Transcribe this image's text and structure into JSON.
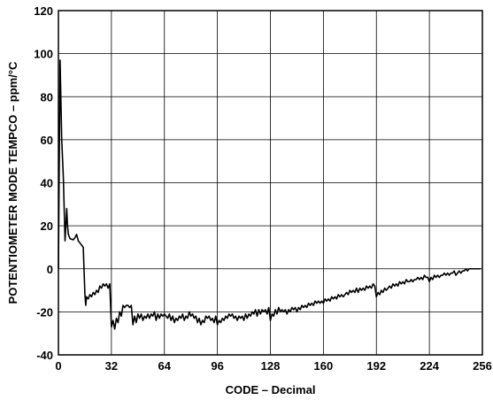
{
  "chart_data": {
    "type": "line",
    "title": "",
    "xlabel": "CODE – Decimal",
    "ylabel": "POTENTIOMETER MODE TEMPCO – ppm/°C",
    "xlim": [
      0,
      256
    ],
    "ylim": [
      -40,
      120
    ],
    "xticks": [
      0,
      32,
      64,
      96,
      128,
      160,
      192,
      224,
      256
    ],
    "yticks": [
      -40,
      -20,
      0,
      20,
      40,
      60,
      80,
      100,
      120
    ],
    "grid": true,
    "line_color": "#000000",
    "series": [
      {
        "name": "",
        "points": [
          [
            0,
            0
          ],
          [
            1,
            97
          ],
          [
            2,
            60
          ],
          [
            3,
            42
          ],
          [
            4,
            13
          ],
          [
            5,
            28
          ],
          [
            5.5,
            20
          ],
          [
            6,
            16
          ],
          [
            7,
            14
          ],
          [
            9,
            13.5
          ],
          [
            10,
            14.5
          ],
          [
            11,
            16
          ],
          [
            12,
            13
          ],
          [
            13,
            12
          ],
          [
            14,
            11
          ],
          [
            15,
            10
          ],
          [
            16,
            -12
          ],
          [
            16.5,
            -17
          ],
          [
            17,
            -13
          ],
          [
            18,
            -14
          ],
          [
            19,
            -12
          ],
          [
            20,
            -13
          ],
          [
            21,
            -11
          ],
          [
            22,
            -12
          ],
          [
            23,
            -10
          ],
          [
            24,
            -11
          ],
          [
            25,
            -8
          ],
          [
            26,
            -9
          ],
          [
            27,
            -7
          ],
          [
            28,
            -8
          ],
          [
            29,
            -7
          ],
          [
            30,
            -9
          ],
          [
            31,
            -7
          ],
          [
            32,
            -27
          ],
          [
            33,
            -24
          ],
          [
            34,
            -28
          ],
          [
            35,
            -23
          ],
          [
            36,
            -25
          ],
          [
            37,
            -20
          ],
          [
            38,
            -22
          ],
          [
            39,
            -17
          ],
          [
            40,
            -18
          ],
          [
            41,
            -17
          ],
          [
            42,
            -17
          ],
          [
            43,
            -18
          ],
          [
            44,
            -17
          ],
          [
            45,
            -26
          ],
          [
            46,
            -22
          ],
          [
            47,
            -25
          ],
          [
            48,
            -21
          ],
          [
            49,
            -23
          ],
          [
            50,
            -21
          ],
          [
            51,
            -24
          ],
          [
            52,
            -22
          ],
          [
            53,
            -23
          ],
          [
            54,
            -21
          ],
          [
            55,
            -23
          ],
          [
            56,
            -21
          ],
          [
            57,
            -22
          ],
          [
            58,
            -20
          ],
          [
            59,
            -24
          ],
          [
            60,
            -21
          ],
          [
            61,
            -23
          ],
          [
            62,
            -21
          ],
          [
            63,
            -22
          ],
          [
            64,
            -21
          ],
          [
            65,
            -22
          ],
          [
            66,
            -23
          ],
          [
            67,
            -21
          ],
          [
            68,
            -24
          ],
          [
            69,
            -22
          ],
          [
            70,
            -25
          ],
          [
            71,
            -23
          ],
          [
            72,
            -24
          ],
          [
            73,
            -22
          ],
          [
            74,
            -23
          ],
          [
            75,
            -21
          ],
          [
            76,
            -24
          ],
          [
            77,
            -22
          ],
          [
            78,
            -23
          ],
          [
            79,
            -20
          ],
          [
            80,
            -22
          ],
          [
            81,
            -21
          ],
          [
            82,
            -23
          ],
          [
            83,
            -22
          ],
          [
            84,
            -25
          ],
          [
            85,
            -23
          ],
          [
            86,
            -26
          ],
          [
            87,
            -24
          ],
          [
            88,
            -25
          ],
          [
            89,
            -22
          ],
          [
            90,
            -23
          ],
          [
            91,
            -22
          ],
          [
            92,
            -24
          ],
          [
            93,
            -23
          ],
          [
            94,
            -25
          ],
          [
            95,
            -22
          ],
          [
            96,
            -26
          ],
          [
            97,
            -24
          ],
          [
            98,
            -25
          ],
          [
            99,
            -23
          ],
          [
            100,
            -24
          ],
          [
            101,
            -22
          ],
          [
            102,
            -23
          ],
          [
            103,
            -21
          ],
          [
            104,
            -22
          ],
          [
            105,
            -21
          ],
          [
            106,
            -23
          ],
          [
            107,
            -22
          ],
          [
            108,
            -24
          ],
          [
            109,
            -22
          ],
          [
            110,
            -23
          ],
          [
            111,
            -22
          ],
          [
            112,
            -24
          ],
          [
            113,
            -21
          ],
          [
            114,
            -23
          ],
          [
            115,
            -21
          ],
          [
            116,
            -22
          ],
          [
            117,
            -20
          ],
          [
            118,
            -21
          ],
          [
            119,
            -19
          ],
          [
            120,
            -22
          ],
          [
            121,
            -19
          ],
          [
            122,
            -21
          ],
          [
            123,
            -19
          ],
          [
            124,
            -20
          ],
          [
            125,
            -19
          ],
          [
            126,
            -21
          ],
          [
            127,
            -18
          ],
          [
            128,
            -24
          ],
          [
            129,
            -21
          ],
          [
            130,
            -22
          ],
          [
            131,
            -19
          ],
          [
            132,
            -21
          ],
          [
            133,
            -18
          ],
          [
            134,
            -20
          ],
          [
            135,
            -19
          ],
          [
            136,
            -20
          ],
          [
            137,
            -19
          ],
          [
            138,
            -21
          ],
          [
            139,
            -19
          ],
          [
            140,
            -20
          ],
          [
            141,
            -18
          ],
          [
            142,
            -19
          ],
          [
            143,
            -18
          ],
          [
            144,
            -20
          ],
          [
            145,
            -18
          ],
          [
            146,
            -19
          ],
          [
            147,
            -17
          ],
          [
            148,
            -18
          ],
          [
            149,
            -17
          ],
          [
            150,
            -18
          ],
          [
            151,
            -16
          ],
          [
            152,
            -17
          ],
          [
            153,
            -16
          ],
          [
            154,
            -17
          ],
          [
            155,
            -15
          ],
          [
            156,
            -16
          ],
          [
            157,
            -15
          ],
          [
            158,
            -16
          ],
          [
            159,
            -15
          ],
          [
            160,
            -16
          ],
          [
            161,
            -14
          ],
          [
            162,
            -15
          ],
          [
            163,
            -14
          ],
          [
            164,
            -15
          ],
          [
            165,
            -13
          ],
          [
            166,
            -14
          ],
          [
            167,
            -13
          ],
          [
            168,
            -14
          ],
          [
            169,
            -12
          ],
          [
            170,
            -13
          ],
          [
            171,
            -12
          ],
          [
            172,
            -13
          ],
          [
            173,
            -12
          ],
          [
            174,
            -11
          ],
          [
            175,
            -12
          ],
          [
            176,
            -10
          ],
          [
            177,
            -11
          ],
          [
            178,
            -10
          ],
          [
            179,
            -11
          ],
          [
            180,
            -9
          ],
          [
            181,
            -11
          ],
          [
            182,
            -9
          ],
          [
            183,
            -10
          ],
          [
            184,
            -9
          ],
          [
            185,
            -10
          ],
          [
            186,
            -8
          ],
          [
            187,
            -9
          ],
          [
            188,
            -8
          ],
          [
            189,
            -9
          ],
          [
            190,
            -7
          ],
          [
            191,
            -8
          ],
          [
            192,
            -13
          ],
          [
            193,
            -11
          ],
          [
            194,
            -12
          ],
          [
            195,
            -10
          ],
          [
            196,
            -11
          ],
          [
            197,
            -9
          ],
          [
            198,
            -10
          ],
          [
            199,
            -9
          ],
          [
            200,
            -8
          ],
          [
            201,
            -9
          ],
          [
            202,
            -7
          ],
          [
            203,
            -8
          ],
          [
            204,
            -7
          ],
          [
            205,
            -8
          ],
          [
            206,
            -6
          ],
          [
            207,
            -7
          ],
          [
            208,
            -6
          ],
          [
            209,
            -7
          ],
          [
            210,
            -5
          ],
          [
            211,
            -6
          ],
          [
            212,
            -6
          ],
          [
            213,
            -5
          ],
          [
            214,
            -6
          ],
          [
            215,
            -5
          ],
          [
            216,
            -5
          ],
          [
            217,
            -4
          ],
          [
            218,
            -5
          ],
          [
            219,
            -4
          ],
          [
            220,
            -5
          ],
          [
            221,
            -3
          ],
          [
            222,
            -4
          ],
          [
            223,
            -4
          ],
          [
            224,
            -6
          ],
          [
            225,
            -4
          ],
          [
            226,
            -5
          ],
          [
            227,
            -3
          ],
          [
            228,
            -4
          ],
          [
            229,
            -3
          ],
          [
            230,
            -4
          ],
          [
            231,
            -3
          ],
          [
            232,
            -3
          ],
          [
            233,
            -2
          ],
          [
            234,
            -3
          ],
          [
            235,
            -2
          ],
          [
            236,
            -3
          ],
          [
            237,
            -2
          ],
          [
            238,
            -2
          ],
          [
            239,
            -1
          ],
          [
            240,
            -3
          ],
          [
            241,
            -2
          ],
          [
            242,
            -1
          ],
          [
            243,
            -2
          ],
          [
            244,
            -1
          ],
          [
            245,
            -1
          ],
          [
            246,
            0
          ],
          [
            247,
            -1
          ],
          [
            248,
            0
          ],
          [
            249,
            0
          ],
          [
            250,
            0
          ],
          [
            251,
            0
          ],
          [
            252,
            0
          ],
          [
            253,
            0
          ],
          [
            254,
            0
          ],
          [
            255,
            0
          ]
        ]
      }
    ]
  }
}
